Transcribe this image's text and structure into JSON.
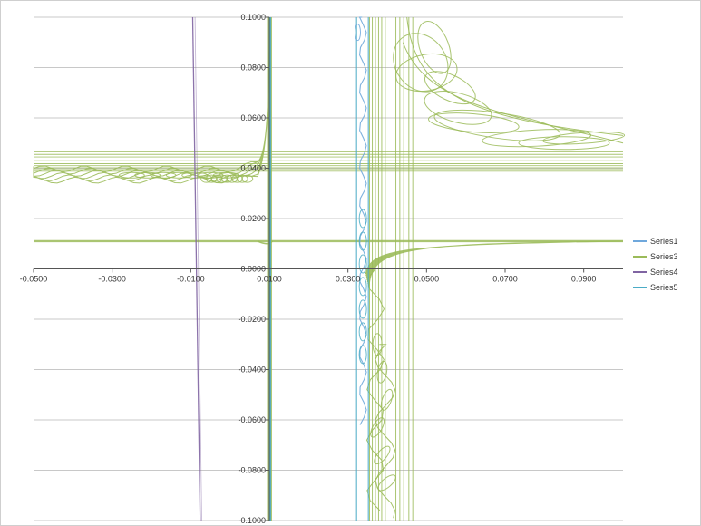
{
  "chart_data": {
    "type": "scatter",
    "title": "",
    "xlabel": "",
    "ylabel": "",
    "xlim": [
      -0.05,
      0.1
    ],
    "ylim": [
      -0.1,
      0.1
    ],
    "x_ticks": [
      "-0.0500",
      "-0.0300",
      "-0.0100",
      "0.0100",
      "0.0300",
      "0.0500",
      "0.0700",
      "0.0900"
    ],
    "x_tick_values": [
      -0.05,
      -0.03,
      -0.01,
      0.01,
      0.03,
      0.05,
      0.07,
      0.09
    ],
    "y_ticks": [
      "0.1000",
      "0.0800",
      "0.0600",
      "0.0400",
      "0.0200",
      "0.0000",
      "-0.0200",
      "-0.0400",
      "-0.0600",
      "-0.0800",
      "-0.1000"
    ],
    "y_tick_values": [
      0.1,
      0.08,
      0.06,
      0.04,
      0.02,
      0.0,
      -0.02,
      -0.04,
      -0.06,
      -0.08,
      -0.1
    ],
    "grid": "horizontal",
    "legend_position": "right",
    "series": [
      {
        "name": "Series1",
        "color": "#6fa8dc",
        "points": [
          [
            0.0335,
            -0.1
          ],
          [
            0.0328,
            -0.06
          ],
          [
            0.0331,
            -0.03
          ],
          [
            0.0338,
            -0.005
          ],
          [
            0.0345,
            0.015
          ],
          [
            0.034,
            0.045
          ],
          [
            0.0333,
            0.075
          ],
          [
            0.0338,
            0.1
          ]
        ]
      },
      {
        "name": "Series3",
        "color": "#9bbb59",
        "points": [
          [
            -0.05,
            0.0395
          ],
          [
            -0.03,
            0.0385
          ],
          [
            -0.015,
            0.0375
          ],
          [
            -0.005,
            0.036
          ],
          [
            0.004,
            0.037
          ],
          [
            0.008,
            0.045
          ],
          [
            0.0095,
            0.07
          ],
          [
            0.0102,
            0.1
          ],
          [
            0.0102,
            -0.1
          ],
          [
            0.0105,
            0.011
          ],
          [
            0.02,
            0.011
          ],
          [
            0.035,
            0.0095
          ],
          [
            0.05,
            0.0102
          ],
          [
            0.07,
            0.0108
          ],
          [
            0.1,
            0.011
          ],
          [
            0.044,
            0.06
          ],
          [
            0.05,
            0.08
          ],
          [
            0.06,
            0.056
          ],
          [
            0.09,
            0.052
          ],
          [
            0.037,
            -0.1
          ],
          [
            0.039,
            -0.05
          ],
          [
            0.036,
            0.02
          ]
        ]
      },
      {
        "name": "Series4",
        "color": "#8064a2",
        "points": [
          [
            -0.0095,
            0.1
          ],
          [
            -0.0088,
            0.04
          ],
          [
            -0.0082,
            -0.02
          ],
          [
            -0.0076,
            -0.1
          ]
        ]
      },
      {
        "name": "Series5",
        "color": "#4bacc6",
        "points": [
          [
            0.0102,
            0.1
          ],
          [
            0.0102,
            -0.1
          ],
          [
            0.0322,
            0.1
          ],
          [
            0.0322,
            -0.06
          ],
          [
            0.0352,
            0.1
          ],
          [
            0.0352,
            -0.1
          ],
          [
            0.0338,
            0.02
          ],
          [
            0.0342,
            -0.04
          ]
        ]
      }
    ]
  }
}
